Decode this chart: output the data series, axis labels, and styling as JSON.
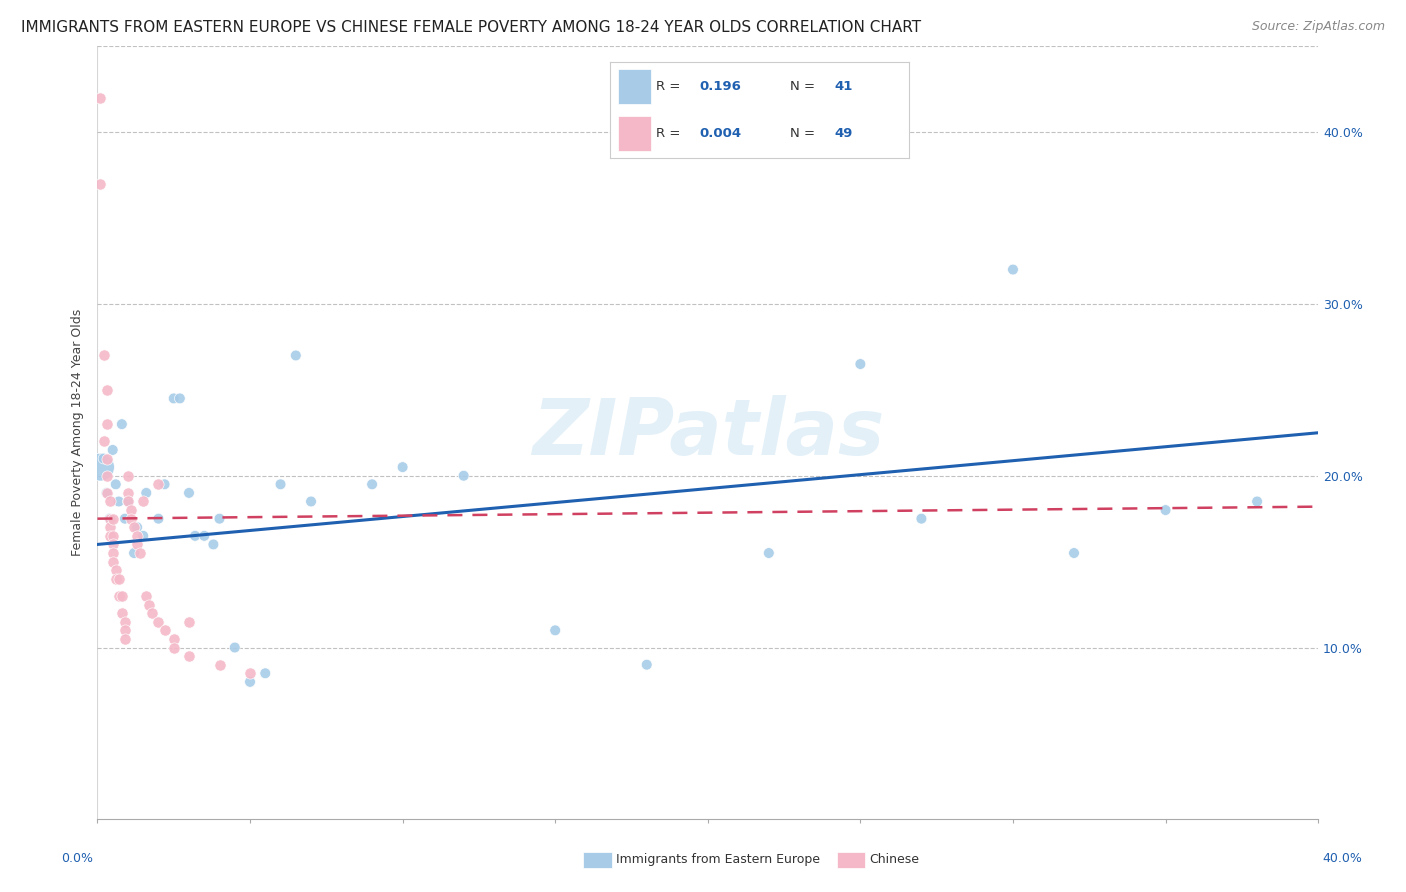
{
  "title": "IMMIGRANTS FROM EASTERN EUROPE VS CHINESE FEMALE POVERTY AMONG 18-24 YEAR OLDS CORRELATION CHART",
  "source": "Source: ZipAtlas.com",
  "ylabel": "Female Poverty Among 18-24 Year Olds",
  "watermark": "ZIPatlas",
  "legend_blue_R": "0.196",
  "legend_blue_N": "41",
  "legend_pink_R": "0.004",
  "legend_pink_N": "49",
  "blue_color": "#a8cce8",
  "pink_color": "#f4b8c8",
  "blue_line_color": "#2060b0",
  "pink_line_color": "#d04060",
  "grid_color": "#bbbbbb",
  "background_color": "#ffffff",
  "blue_scatter_x": [
    0.001,
    0.002,
    0.003,
    0.004,
    0.005,
    0.006,
    0.007,
    0.008,
    0.009,
    0.01,
    0.012,
    0.013,
    0.015,
    0.016,
    0.02,
    0.022,
    0.025,
    0.027,
    0.03,
    0.032,
    0.035,
    0.038,
    0.04,
    0.045,
    0.05,
    0.055,
    0.06,
    0.065,
    0.07,
    0.09,
    0.1,
    0.12,
    0.15,
    0.18,
    0.22,
    0.25,
    0.27,
    0.3,
    0.32,
    0.35,
    0.38
  ],
  "blue_scatter_y": [
    0.205,
    0.21,
    0.19,
    0.175,
    0.215,
    0.195,
    0.185,
    0.23,
    0.175,
    0.185,
    0.155,
    0.17,
    0.165,
    0.19,
    0.175,
    0.195,
    0.245,
    0.245,
    0.19,
    0.165,
    0.165,
    0.16,
    0.175,
    0.1,
    0.08,
    0.085,
    0.195,
    0.27,
    0.185,
    0.195,
    0.205,
    0.2,
    0.11,
    0.09,
    0.155,
    0.265,
    0.175,
    0.32,
    0.155,
    0.18,
    0.185
  ],
  "blue_scatter_s": [
    400,
    60,
    60,
    60,
    60,
    60,
    60,
    60,
    60,
    60,
    60,
    60,
    60,
    60,
    60,
    60,
    60,
    60,
    60,
    60,
    60,
    60,
    60,
    60,
    60,
    60,
    60,
    60,
    60,
    60,
    60,
    60,
    60,
    60,
    60,
    60,
    60,
    60,
    60,
    60,
    60
  ],
  "pink_scatter_x": [
    0.001,
    0.001,
    0.002,
    0.002,
    0.003,
    0.003,
    0.003,
    0.003,
    0.003,
    0.004,
    0.004,
    0.004,
    0.004,
    0.005,
    0.005,
    0.005,
    0.005,
    0.005,
    0.006,
    0.006,
    0.007,
    0.007,
    0.008,
    0.008,
    0.009,
    0.009,
    0.009,
    0.01,
    0.01,
    0.01,
    0.011,
    0.011,
    0.012,
    0.013,
    0.013,
    0.014,
    0.015,
    0.016,
    0.017,
    0.018,
    0.02,
    0.02,
    0.022,
    0.025,
    0.025,
    0.03,
    0.03,
    0.04,
    0.05
  ],
  "pink_scatter_y": [
    0.42,
    0.37,
    0.27,
    0.22,
    0.25,
    0.23,
    0.21,
    0.2,
    0.19,
    0.185,
    0.175,
    0.17,
    0.165,
    0.175,
    0.165,
    0.16,
    0.155,
    0.15,
    0.145,
    0.14,
    0.14,
    0.13,
    0.13,
    0.12,
    0.115,
    0.11,
    0.105,
    0.2,
    0.19,
    0.185,
    0.18,
    0.175,
    0.17,
    0.165,
    0.16,
    0.155,
    0.185,
    0.13,
    0.125,
    0.12,
    0.195,
    0.115,
    0.11,
    0.105,
    0.1,
    0.115,
    0.095,
    0.09,
    0.085
  ],
  "xlim": [
    0.0,
    0.4
  ],
  "ylim": [
    0.0,
    0.45
  ],
  "xtick_positions": [
    0.0,
    0.05,
    0.1,
    0.15,
    0.2,
    0.25,
    0.3,
    0.35,
    0.4
  ],
  "ytick_positions": [
    0.0,
    0.1,
    0.2,
    0.3,
    0.4
  ],
  "blue_trend_x0": 0.0,
  "blue_trend_x1": 0.4,
  "blue_trend_y0": 0.16,
  "blue_trend_y1": 0.225,
  "pink_trend_x0": 0.0,
  "pink_trend_x1": 0.4,
  "pink_trend_y0": 0.175,
  "pink_trend_y1": 0.182,
  "title_fontsize": 11,
  "source_fontsize": 9,
  "ylabel_fontsize": 9,
  "tick_fontsize": 9
}
